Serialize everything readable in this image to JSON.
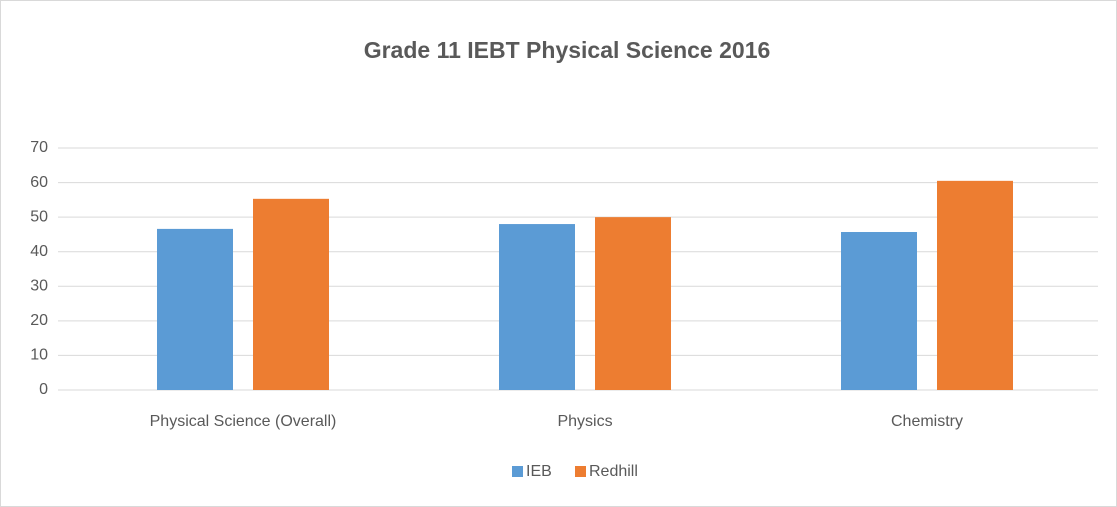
{
  "chart_data": {
    "type": "bar",
    "title": "Grade 11 IEBT Physical Science 2016",
    "categories": [
      "Physical Science (Overall)",
      "Physics",
      "Chemistry"
    ],
    "series": [
      {
        "name": "IEB",
        "color": "#5b9bd5",
        "values": [
          46.6,
          48,
          45.7
        ]
      },
      {
        "name": "Redhill",
        "color": "#ed7d31",
        "values": [
          55.3,
          50,
          60.5
        ]
      }
    ],
    "ylim": [
      0,
      70
    ],
    "yticks": [
      0,
      10,
      20,
      30,
      40,
      50,
      60,
      70
    ],
    "grid": true,
    "legend": "bottom"
  }
}
